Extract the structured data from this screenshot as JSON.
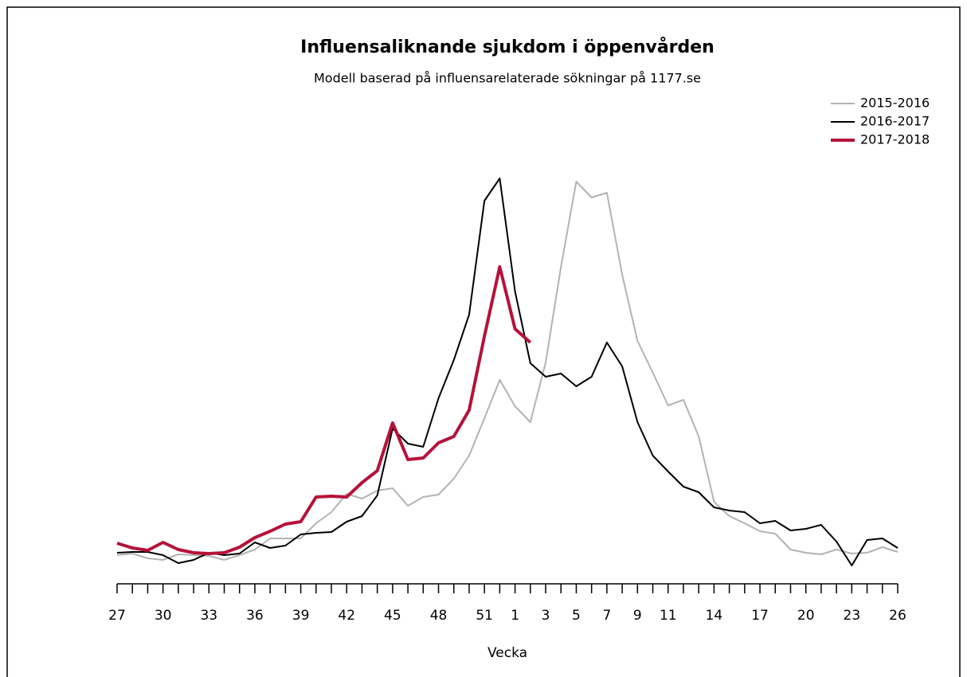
{
  "chart_data": {
    "type": "line",
    "title": "Influensaliknande sjukdom i öppenvården",
    "subtitle": "Modell baserad på influensarelaterade sökningar på 1177.se",
    "x_label": "Vecka",
    "categories": [
      "27",
      null,
      null,
      "30",
      null,
      null,
      "33",
      null,
      null,
      "36",
      null,
      null,
      "39",
      null,
      null,
      "42",
      null,
      null,
      "45",
      null,
      null,
      "48",
      null,
      null,
      "51",
      null,
      "1",
      null,
      "3",
      null,
      "5",
      null,
      "7",
      null,
      "9",
      null,
      "11",
      null,
      null,
      "14",
      null,
      null,
      "17",
      null,
      null,
      "20",
      null,
      null,
      "23",
      null,
      null,
      "26"
    ],
    "ylim": [
      0,
      105
    ],
    "legend": "top-right",
    "series": [
      {
        "name": "2015-2016",
        "color": "#b3b3b3",
        "values": [
          7.6,
          8,
          6.8,
          6.4,
          7.8,
          7.6,
          7.4,
          6.4,
          7.6,
          9,
          11.8,
          11.8,
          11.8,
          15.6,
          18.4,
          23,
          21.8,
          23.8,
          24.4,
          20,
          22.2,
          22.8,
          26.8,
          32.6,
          42,
          51.6,
          45,
          41,
          56,
          80,
          101.4,
          97.4,
          98.6,
          78,
          61.4,
          53.4,
          45.2,
          46.6,
          37.4,
          21,
          17.4,
          15.6,
          13.6,
          13,
          9,
          8.2,
          7.8,
          9,
          8,
          8.2,
          9.6,
          8.4
        ]
      },
      {
        "name": "2016-2017",
        "color": "#000000",
        "values": [
          8.2,
          8.4,
          8.4,
          7.6,
          5.6,
          6.4,
          8.2,
          7.6,
          8,
          10.8,
          9.4,
          10,
          12.8,
          13.2,
          13.4,
          16,
          17.4,
          22.6,
          39.4,
          35.6,
          34.8,
          47,
          56.6,
          68,
          96.6,
          102.2,
          73.8,
          55.8,
          52.4,
          53.2,
          50,
          52.4,
          61,
          55,
          41,
          32.6,
          28.6,
          24.8,
          23.4,
          19.6,
          18.8,
          18.4,
          15.6,
          16.2,
          13.8,
          14.2,
          15.2,
          11,
          5,
          11.4,
          11.8,
          9.4
        ]
      },
      {
        "name": "2017-2018",
        "color": "#b5123a",
        "values": [
          10.6,
          9.4,
          8.8,
          10.8,
          9,
          8.2,
          8,
          8.2,
          9.6,
          12,
          13.6,
          15.4,
          16,
          22.2,
          22.4,
          22.2,
          25.8,
          28.8,
          40.8,
          31.6,
          32,
          35.8,
          37.4,
          44,
          62.6,
          80,
          64.4,
          61,
          null,
          null,
          null,
          null,
          null,
          null,
          null,
          null,
          null,
          null,
          null,
          null,
          null,
          null,
          null,
          null,
          null,
          null,
          null,
          null,
          null,
          null,
          null,
          null
        ]
      }
    ]
  }
}
